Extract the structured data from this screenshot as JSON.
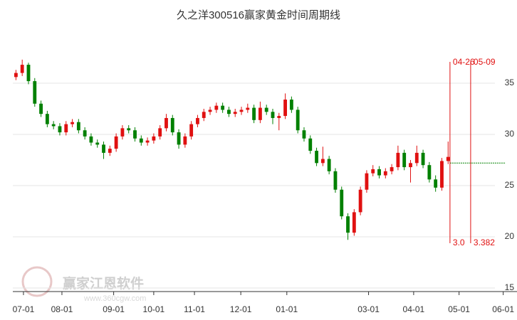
{
  "chart_data": {
    "type": "candlestick",
    "title": "久之洋300516赢家黄金时间周期线",
    "watermark": "赢家江恩软件",
    "watermark_url": "www.360cgw.com",
    "up_color": "#e01010",
    "down_color": "#008000",
    "open": [
      35.6,
      36.0,
      36.8,
      35.2,
      33.0,
      32.0,
      31.0,
      30.8,
      30.2,
      31.0,
      31.2,
      30.4,
      29.8,
      29.2,
      29.0,
      28.2,
      28.6,
      29.8,
      30.6,
      30.4,
      29.6,
      29.2,
      29.4,
      29.8,
      30.6,
      31.6,
      30.2,
      29.0,
      29.8,
      31.0,
      31.6,
      32.2,
      32.4,
      32.8,
      32.4,
      32.0,
      32.2,
      32.4,
      32.6,
      31.4,
      32.6,
      32.2,
      31.6,
      31.8,
      33.4,
      32.4,
      30.4,
      29.6,
      28.4,
      27.2,
      27.6,
      26.4,
      24.6,
      22.0,
      20.4,
      22.4,
      24.6,
      26.2,
      26.6,
      26.0,
      26.4,
      26.8,
      28.2,
      26.8,
      27.2,
      28.2,
      27.0,
      25.6,
      24.8,
      27.4
    ],
    "high": [
      36.3,
      37.3,
      37.0,
      35.5,
      33.3,
      32.3,
      31.3,
      31.1,
      31.3,
      31.5,
      31.5,
      30.7,
      30.1,
      29.5,
      29.3,
      28.9,
      30.1,
      30.9,
      30.9,
      30.7,
      29.9,
      29.7,
      30.1,
      30.9,
      32.0,
      31.9,
      30.5,
      30.1,
      31.3,
      31.9,
      32.5,
      32.7,
      33.1,
      33.1,
      32.7,
      32.5,
      32.7,
      33.0,
      32.9,
      33.2,
      32.9,
      32.5,
      32.1,
      34.0,
      33.7,
      32.7,
      30.7,
      29.9,
      28.7,
      28.8,
      27.9,
      26.7,
      24.9,
      22.3,
      22.7,
      24.9,
      26.5,
      27.0,
      26.9,
      26.7,
      27.1,
      28.9,
      28.5,
      27.5,
      28.9,
      28.5,
      27.3,
      26.0,
      27.7,
      29.3
    ],
    "low": [
      35.3,
      35.7,
      34.9,
      32.7,
      31.7,
      30.7,
      30.5,
      29.9,
      29.9,
      30.7,
      30.1,
      29.5,
      28.9,
      28.7,
      27.6,
      27.9,
      28.3,
      29.5,
      30.1,
      29.3,
      28.9,
      28.9,
      29.1,
      29.5,
      30.3,
      29.9,
      28.6,
      28.7,
      29.5,
      30.7,
      31.3,
      31.9,
      32.1,
      32.1,
      31.7,
      31.7,
      31.9,
      32.1,
      31.1,
      31.1,
      31.9,
      31.0,
      30.4,
      31.5,
      32.1,
      30.1,
      29.3,
      28.1,
      26.9,
      26.9,
      26.1,
      24.3,
      21.7,
      19.7,
      20.1,
      22.1,
      24.3,
      25.9,
      25.7,
      25.7,
      26.1,
      26.5,
      26.5,
      25.3,
      26.9,
      26.7,
      25.3,
      24.4,
      24.5,
      27.1
    ],
    "close": [
      36.0,
      36.8,
      35.2,
      33.0,
      32.0,
      31.0,
      30.8,
      30.2,
      31.0,
      31.2,
      30.4,
      29.8,
      29.2,
      29.0,
      28.2,
      28.6,
      29.8,
      30.6,
      30.4,
      29.6,
      29.2,
      29.4,
      29.8,
      30.6,
      31.6,
      30.2,
      29.0,
      29.8,
      31.0,
      31.6,
      32.2,
      32.4,
      32.8,
      32.4,
      32.0,
      32.2,
      32.4,
      32.6,
      31.4,
      32.6,
      32.2,
      31.6,
      31.8,
      33.4,
      32.4,
      30.4,
      29.6,
      28.4,
      27.2,
      27.6,
      26.4,
      24.6,
      22.0,
      20.4,
      22.4,
      24.6,
      26.2,
      26.6,
      26.0,
      26.4,
      26.8,
      28.2,
      26.8,
      27.2,
      28.2,
      27.0,
      25.6,
      24.8,
      27.4,
      27.8
    ],
    "xlim": [
      0,
      80.5
    ],
    "xticks": [
      {
        "value": 1.7,
        "label": "07-01"
      },
      {
        "value": 7.84,
        "label": "08-01"
      },
      {
        "value": 16.1,
        "label": "09-01"
      },
      {
        "value": 22.5,
        "label": "10-01"
      },
      {
        "value": 29.0,
        "label": "11-01"
      },
      {
        "value": 36.4,
        "label": "12-01"
      },
      {
        "value": 43.75,
        "label": "01-01"
      },
      {
        "value": 56.8,
        "label": "03-01"
      },
      {
        "value": 64.0,
        "label": "04-01"
      },
      {
        "value": 71.25,
        "label": "05-01"
      },
      {
        "value": 78.3,
        "label": "06-01"
      }
    ],
    "ylim": [
      14.65,
      40
    ],
    "yticks": [
      15,
      20,
      25,
      30,
      35
    ],
    "grid": true,
    "cycle_lines": [
      {
        "x": 69.8,
        "label": "04-26",
        "bottom_label": "3.0"
      },
      {
        "x": 73.1,
        "label": "05-09",
        "bottom_label": "3.382"
      }
    ],
    "cycle_color": "#e01010",
    "guide_level": 27.2,
    "guide_color": "#008000"
  }
}
